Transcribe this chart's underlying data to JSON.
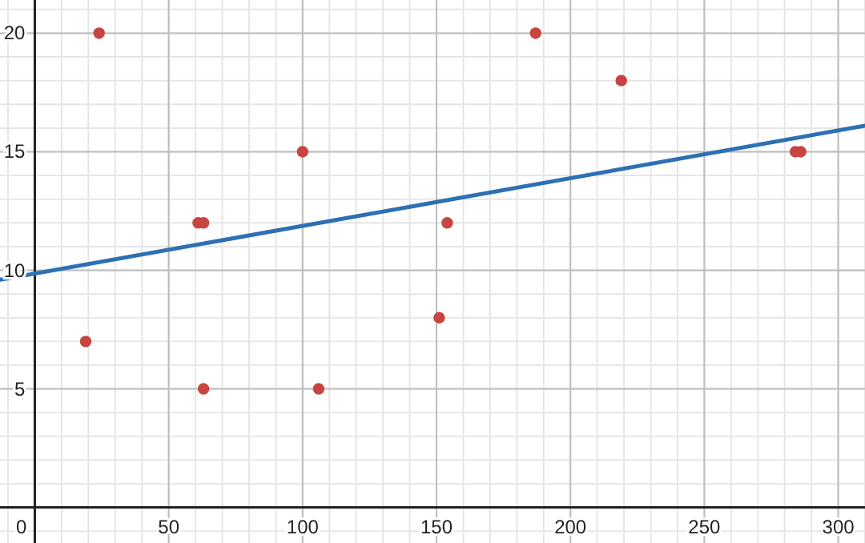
{
  "chart_data": {
    "type": "scatter",
    "xlim": [
      -13,
      310
    ],
    "ylim": [
      -1.5,
      21.4
    ],
    "xticks": [
      0,
      50,
      100,
      150,
      200,
      250,
      300
    ],
    "yticks": [
      {
        "value": 0,
        "label": null
      },
      5,
      10,
      15,
      20
    ],
    "grid": true,
    "series": [
      {
        "marker": "circle",
        "color": "#c74440",
        "x": [
          24,
          19,
          61,
          63,
          63,
          100,
          106,
          151,
          154,
          187,
          219,
          284,
          286
        ],
        "values": [
          20,
          7,
          12,
          12,
          5,
          15,
          5,
          8,
          12,
          20,
          18,
          15,
          15
        ]
      },
      {
        "type": "line",
        "color": "#2d70b3",
        "x": [
          -13,
          310
        ],
        "values": [
          9.6,
          16.1
        ]
      }
    ]
  }
}
